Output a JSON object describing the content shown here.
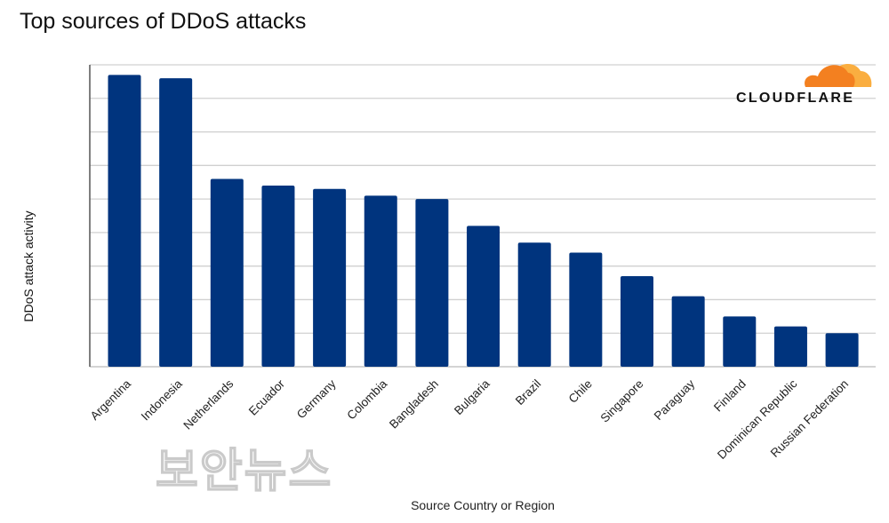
{
  "chart_data": {
    "type": "bar",
    "title": "Top sources of DDoS attacks",
    "xlabel": "Source Country or Region",
    "ylabel": "DDoS attack activity",
    "categories": [
      "Argentina",
      "Indonesia",
      "Netherlands",
      "Ecuador",
      "Germany",
      "Colombia",
      "Bangladesh",
      "Bulgaria",
      "Brazil",
      "Chile",
      "Singapore",
      "Paraguay",
      "Finland",
      "Dominican Republic",
      "Russian Federation"
    ],
    "values": [
      8.7,
      8.6,
      5.6,
      5.4,
      5.3,
      5.1,
      5.0,
      4.2,
      3.7,
      3.4,
      2.7,
      2.1,
      1.5,
      1.2,
      1.0
    ],
    "ylim": [
      0,
      9
    ],
    "y_tick_labels_shown": false,
    "grid": true,
    "bar_color": "#00347e",
    "grid_color": "#d0d0d0"
  },
  "logo": {
    "text": "CLOUDFLARE",
    "color": "#f38020",
    "color_light": "#faae40"
  },
  "watermark": "보안뉴스"
}
